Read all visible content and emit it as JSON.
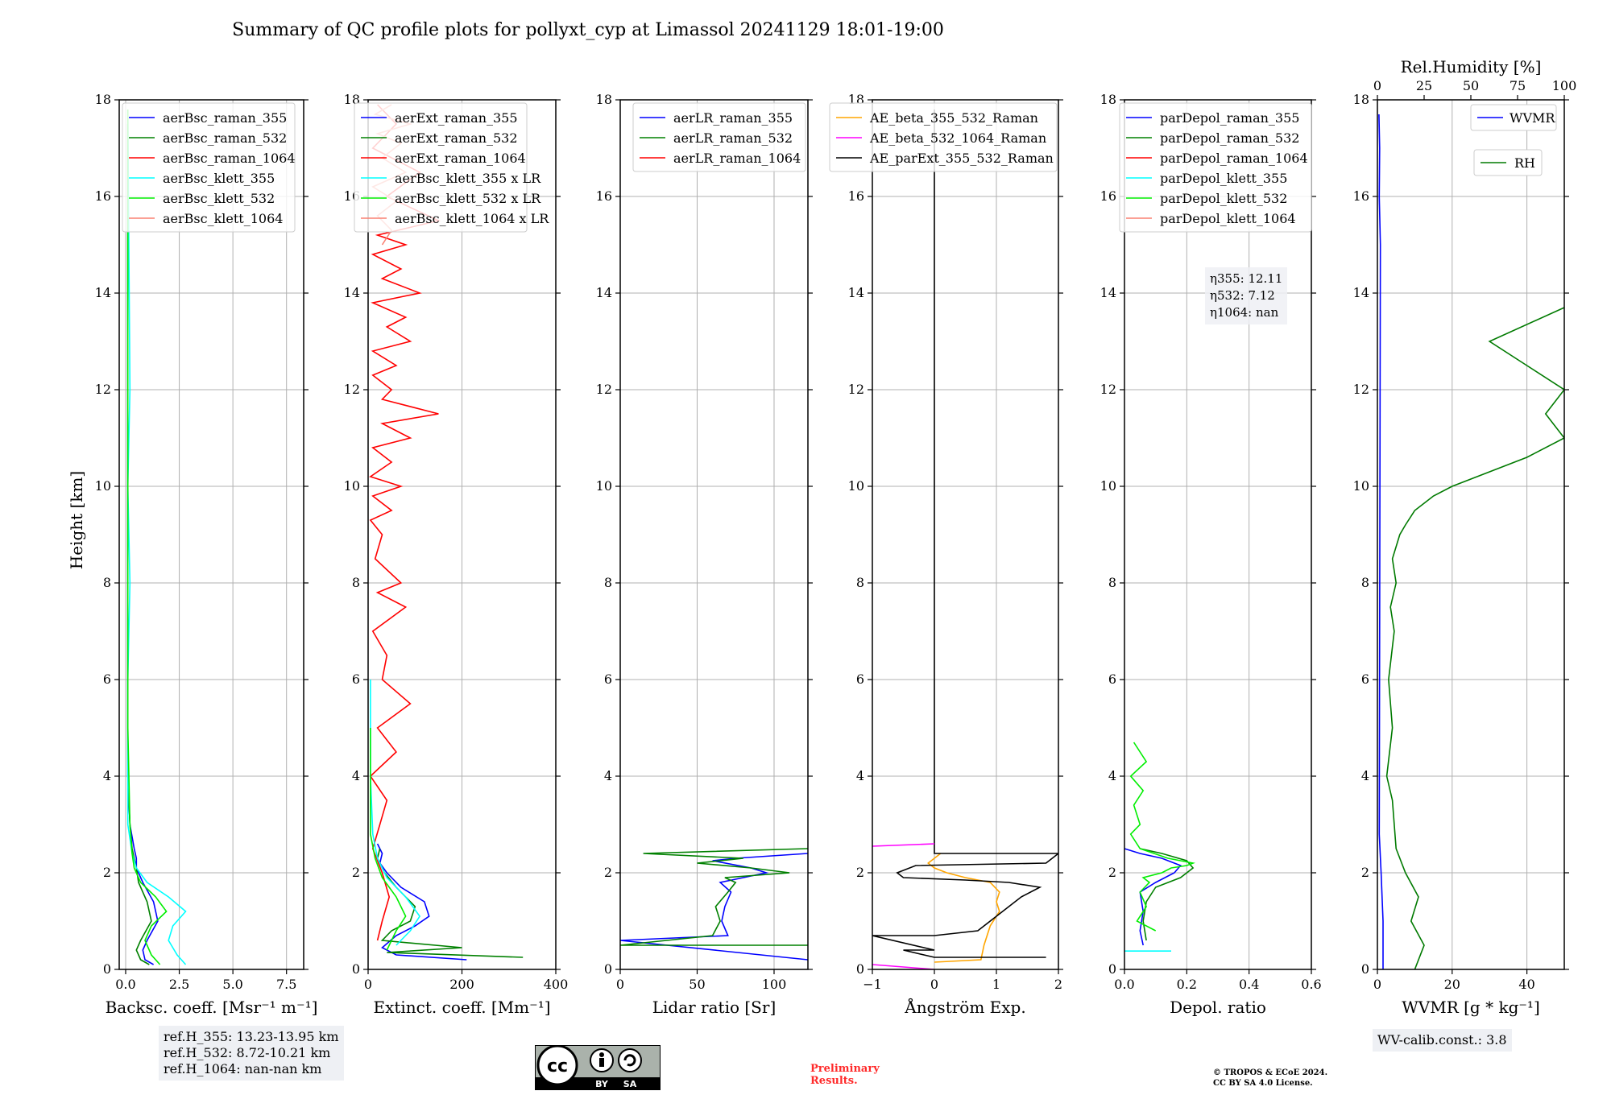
{
  "figure": {
    "title": "Summary of QC profile plots for pollyxt_cyp at Limassol 20241129 18:01-19:00",
    "ylabel": "Height [km]"
  },
  "colors": {
    "blue": "#0000ff",
    "green": "#008000",
    "red": "#ff0000",
    "cyan": "#00ffff",
    "lime": "#00ee00",
    "salmon": "#fa8072",
    "orange": "#ffa500",
    "magenta": "#ff00ff",
    "black": "#000000",
    "darkgreen": "#007a00"
  },
  "chart_data": [
    {
      "type": "line",
      "id": "backscatter",
      "xlabel": "Backsc. coeff. [Msr⁻¹ m⁻¹]",
      "xlim": [
        -0.3,
        8.3
      ],
      "ylim": [
        0,
        18
      ],
      "xticks": [
        "0.0",
        "2.5",
        "5.0",
        "7.5"
      ],
      "xtick_values": [
        0,
        2.5,
        5,
        7.5
      ],
      "yticks": [
        "0",
        "2",
        "4",
        "6",
        "8",
        "10",
        "12",
        "14",
        "16",
        "18"
      ],
      "legend": "top-right",
      "series": [
        {
          "name": "aerBsc_raman_355",
          "color": "blue",
          "x": [
            1.3,
            0.9,
            0.8,
            1.0,
            1.5,
            1.3,
            0.8,
            0.5,
            0.5,
            0.4,
            0.2,
            0.1,
            0.1,
            0.1
          ],
          "y": [
            0.1,
            0.2,
            0.4,
            0.6,
            1.0,
            1.4,
            1.8,
            2.1,
            2.3,
            2.5,
            3.0,
            4.0,
            10.0,
            17.5
          ]
        },
        {
          "name": "aerBsc_raman_532",
          "color": "green",
          "x": [
            1.1,
            0.7,
            0.5,
            0.7,
            1.2,
            1.0,
            0.6,
            0.5,
            0.4,
            0.3,
            0.2,
            0.1,
            0.1,
            0.1
          ],
          "y": [
            0.1,
            0.2,
            0.4,
            0.6,
            1.0,
            1.4,
            1.8,
            2.1,
            2.3,
            2.5,
            3.0,
            4.0,
            10.0,
            17.5
          ]
        },
        {
          "name": "aerBsc_raman_1064",
          "color": "red",
          "x": [],
          "y": []
        },
        {
          "name": "aerBsc_klett_355",
          "color": "cyan",
          "x": [
            2.8,
            2.4,
            2.0,
            2.2,
            2.8,
            2.0,
            1.0,
            0.5,
            0.3,
            0.1,
            0.1,
            0.2,
            0.1,
            0.2,
            0.1
          ],
          "y": [
            0.1,
            0.3,
            0.6,
            0.9,
            1.2,
            1.5,
            1.8,
            2.1,
            2.4,
            3.0,
            6.0,
            8.0,
            10.0,
            12.0,
            17.8
          ]
        },
        {
          "name": "aerBsc_klett_532",
          "color": "lime",
          "x": [
            1.6,
            1.2,
            0.9,
            1.2,
            1.9,
            1.4,
            0.7,
            0.4,
            0.3,
            0.2,
            0.1,
            0.1
          ],
          "y": [
            0.1,
            0.3,
            0.6,
            0.9,
            1.2,
            1.5,
            1.8,
            2.1,
            2.4,
            3.0,
            5.0,
            17.8
          ]
        },
        {
          "name": "aerBsc_klett_1064",
          "color": "salmon",
          "x": [],
          "y": []
        }
      ],
      "annotation": [
        "ref.H_355: 13.23-13.95 km",
        "ref.H_532: 8.72-10.21 km",
        "ref.H_1064: nan-nan km"
      ]
    },
    {
      "type": "line",
      "id": "extinction",
      "xlabel": "Extinct. coeff. [Mm⁻¹]",
      "xlim": [
        0,
        400
      ],
      "ylim": [
        0,
        18
      ],
      "xticks": [
        "0",
        "200",
        "400"
      ],
      "xtick_values": [
        0,
        200,
        400
      ],
      "yticks": [
        "0",
        "2",
        "4",
        "6",
        "8",
        "10",
        "12",
        "14",
        "16",
        "18"
      ],
      "legend": "top-right",
      "series": [
        {
          "name": "aerExt_raman_355",
          "color": "blue",
          "x": [
            210,
            60,
            30,
            60,
            100,
            130,
            120,
            70,
            40,
            25,
            30,
            20
          ],
          "y": [
            0.2,
            0.3,
            0.45,
            0.7,
            0.9,
            1.1,
            1.4,
            1.7,
            2.0,
            2.2,
            2.4,
            2.6
          ]
        },
        {
          "name": "aerExt_raman_532",
          "color": "green",
          "x": [
            330,
            40,
            200,
            30,
            50,
            90,
            100,
            60,
            35,
            20,
            25
          ],
          "y": [
            0.25,
            0.35,
            0.45,
            0.6,
            0.8,
            1.0,
            1.3,
            1.7,
            2.0,
            2.3,
            2.5
          ]
        },
        {
          "name": "aerExt_raman_1064",
          "color": "red",
          "x": [
            20,
            30,
            45,
            30,
            10,
            25,
            40,
            5,
            60,
            20,
            90,
            30,
            40,
            10,
            80,
            20,
            70,
            15,
            30,
            5,
            50,
            10,
            70,
            5,
            50,
            10,
            90,
            30,
            150,
            30,
            50,
            10,
            60,
            10,
            90,
            40,
            80,
            10,
            110,
            30,
            70,
            10,
            80,
            20,
            150,
            40,
            110,
            10,
            60,
            20
          ],
          "y": [
            0.6,
            1.0,
            1.5,
            2.0,
            2.5,
            3.0,
            3.5,
            4.0,
            4.5,
            5.0,
            5.5,
            6.0,
            6.5,
            7.0,
            7.5,
            7.8,
            8.0,
            8.5,
            9.0,
            9.3,
            9.5,
            9.8,
            10.0,
            10.2,
            10.5,
            10.8,
            11.0,
            11.3,
            11.5,
            11.8,
            12.0,
            12.3,
            12.5,
            12.8,
            13.0,
            13.3,
            13.5,
            13.8,
            14.0,
            14.3,
            14.5,
            14.8,
            15.0,
            15.2,
            15.5,
            16.0,
            16.5,
            17.0,
            17.5,
            17.9
          ]
        },
        {
          "name": "aerBsc_klett_355 x LR",
          "color": "cyan",
          "x": [
            60,
            90,
            110,
            80,
            40,
            20,
            10,
            5,
            5
          ],
          "y": [
            0.5,
            0.8,
            1.1,
            1.5,
            1.9,
            2.3,
            2.8,
            4.0,
            6.0
          ]
        },
        {
          "name": "aerBsc_klett_532 x LR",
          "color": "lime",
          "x": [
            40,
            60,
            80,
            60,
            30,
            15,
            5,
            5
          ],
          "y": [
            0.4,
            0.8,
            1.1,
            1.5,
            1.9,
            2.3,
            2.8,
            5.0
          ]
        },
        {
          "name": "aerBsc_klett_1064 x LR",
          "color": "salmon",
          "x": [
            30,
            50,
            20,
            60,
            10,
            80,
            30,
            70,
            20,
            90,
            15,
            50
          ],
          "y": [
            15.0,
            15.3,
            15.6,
            15.9,
            16.2,
            16.5,
            16.8,
            17.1,
            17.3,
            17.5,
            17.7,
            17.9
          ]
        }
      ]
    },
    {
      "type": "line",
      "id": "lidar_ratio",
      "xlabel": "Lidar ratio [Sr]",
      "xlim": [
        0,
        122
      ],
      "ylim": [
        0,
        18
      ],
      "xticks": [
        "0",
        "50",
        "100"
      ],
      "xtick_values": [
        0,
        50,
        100
      ],
      "yticks": [
        "0",
        "2",
        "4",
        "6",
        "8",
        "10",
        "12",
        "14",
        "16",
        "18"
      ],
      "legend": "top-right",
      "series": [
        {
          "name": "aerLR_raman_355",
          "color": "blue",
          "x": [
            122,
            0,
            70,
            66,
            68,
            72,
            65,
            80,
            95,
            85,
            60,
            75,
            122
          ],
          "y": [
            0.2,
            0.6,
            0.7,
            1.0,
            1.3,
            1.6,
            1.8,
            1.9,
            2.0,
            2.1,
            2.25,
            2.3,
            2.4
          ]
        },
        {
          "name": "aerLR_raman_532",
          "color": "green",
          "x": [
            122,
            0,
            60,
            65,
            62,
            70,
            75,
            68,
            110,
            85,
            50,
            80,
            15,
            122
          ],
          "y": [
            0.5,
            0.5,
            0.7,
            1.0,
            1.3,
            1.6,
            1.8,
            1.9,
            2.0,
            2.1,
            2.2,
            2.3,
            2.4,
            2.5
          ]
        },
        {
          "name": "aerLR_raman_1064",
          "color": "red",
          "x": [],
          "y": []
        }
      ]
    },
    {
      "type": "line",
      "id": "angstrom",
      "xlabel": "Ångström Exp.",
      "xlim": [
        -1,
        2
      ],
      "ylim": [
        0,
        18
      ],
      "xticks": [
        "−1",
        "0",
        "1",
        "2"
      ],
      "xtick_values": [
        -1,
        0,
        1,
        2
      ],
      "yticks": [
        "0",
        "2",
        "4",
        "6",
        "8",
        "10",
        "12",
        "14",
        "16",
        "18"
      ],
      "legend": "top-right",
      "series": [
        {
          "name": "AE_beta_355_532_Raman",
          "color": "orange",
          "x": [
            0.0,
            0.75,
            0.8,
            0.9,
            1.05,
            1.0,
            1.05,
            0.9,
            0.5,
            0.2,
            0.0,
            -0.1,
            0.0,
            0.1
          ],
          "y": [
            0.15,
            0.2,
            0.5,
            0.9,
            1.2,
            1.4,
            1.6,
            1.8,
            1.9,
            2.0,
            2.1,
            2.2,
            2.3,
            2.4
          ]
        },
        {
          "name": "AE_beta_532_1064_Raman",
          "color": "magenta",
          "x": [
            -1.0,
            0.0
          ],
          "y": [
            0.1,
            0.0
          ]
        },
        {
          "name": "AE_parExt_355_532_Raman",
          "color": "black",
          "x": [
            1.8,
            0.0,
            -0.5,
            0.0,
            -1.0,
            0.0,
            0.7,
            1.0,
            1.4,
            1.7,
            1.2,
            0.5,
            -0.5,
            -0.6,
            -0.3,
            1.8,
            2.0,
            0.0,
            0.0
          ],
          "y": [
            0.25,
            0.25,
            0.4,
            0.4,
            0.7,
            0.7,
            0.8,
            1.1,
            1.5,
            1.7,
            1.8,
            1.85,
            1.9,
            2.0,
            2.15,
            2.2,
            2.4,
            2.4,
            17.8
          ]
        },
        {
          "name": "AE_beta_532_1064_Raman_upper",
          "color": "magenta",
          "x": [
            -1.0,
            0.0
          ],
          "y": [
            2.55,
            2.6
          ]
        }
      ]
    },
    {
      "type": "line",
      "id": "depol",
      "xlabel": "Depol. ratio",
      "xlim": [
        0,
        0.6
      ],
      "ylim": [
        0,
        18
      ],
      "xticks": [
        "0.0",
        "0.2",
        "0.4",
        "0.6"
      ],
      "xtick_values": [
        0,
        0.2,
        0.4,
        0.6
      ],
      "yticks": [
        "0",
        "2",
        "4",
        "6",
        "8",
        "10",
        "12",
        "14",
        "16",
        "18"
      ],
      "legend": "top-right",
      "series": [
        {
          "name": "parDepol_raman_355",
          "color": "blue",
          "x": [
            0.06,
            0.05,
            0.06,
            0.05,
            0.1,
            0.16,
            0.18,
            0.12,
            0.05,
            0.0
          ],
          "y": [
            0.5,
            0.8,
            1.2,
            1.6,
            1.8,
            2.0,
            2.15,
            2.3,
            2.4,
            2.5
          ]
        },
        {
          "name": "parDepol_raman_532",
          "color": "green",
          "x": [
            0.07,
            0.06,
            0.07,
            0.1,
            0.18,
            0.22,
            0.2,
            0.12,
            0.05
          ],
          "y": [
            0.6,
            1.0,
            1.4,
            1.7,
            1.9,
            2.1,
            2.25,
            2.4,
            2.5
          ]
        },
        {
          "name": "parDepol_raman_1064",
          "color": "red",
          "x": [],
          "y": []
        },
        {
          "name": "parDepol_klett_355",
          "color": "cyan",
          "x": [
            0.15,
            0.0
          ],
          "y": [
            0.38,
            0.38
          ]
        },
        {
          "name": "parDepol_klett_532",
          "color": "lime",
          "x": [
            0.1,
            0.04,
            0.07,
            0.05,
            0.08,
            0.06,
            0.12,
            0.15,
            0.2,
            0.22,
            0.14,
            0.05,
            0.02,
            0.05,
            0.03,
            0.06,
            0.02,
            0.07,
            0.03
          ],
          "y": [
            0.8,
            1.0,
            1.3,
            1.6,
            1.8,
            1.9,
            2.0,
            2.1,
            2.15,
            2.2,
            2.3,
            2.5,
            2.8,
            3.0,
            3.4,
            3.7,
            4.0,
            4.3,
            4.7
          ]
        },
        {
          "name": "parDepol_klett_1064",
          "color": "salmon",
          "x": [],
          "y": []
        }
      ],
      "annotation": [
        "η355: 12.11",
        "η532: 7.12",
        "η1064: nan"
      ]
    },
    {
      "type": "line",
      "id": "wvmr",
      "xlabel": "WVMR [g * kg⁻¹]",
      "x2label": "Rel.Humidity [%]",
      "xlim": [
        0,
        50
      ],
      "x2lim": [
        0,
        100
      ],
      "ylim": [
        0,
        18
      ],
      "xticks": [
        "0",
        "20",
        "40"
      ],
      "xtick_values": [
        0,
        20,
        40
      ],
      "x2ticks": [
        "0",
        "25",
        "50",
        "75",
        "100"
      ],
      "x2tick_values": [
        0,
        25,
        50,
        75,
        100
      ],
      "yticks": [
        "0",
        "2",
        "4",
        "6",
        "8",
        "10",
        "12",
        "14",
        "16",
        "18"
      ],
      "series": [
        {
          "name": "WVMR",
          "color": "blue",
          "x": [
            1.5,
            1.5,
            1.0,
            0.5,
            0.8,
            0.5,
            0.6,
            0.4
          ],
          "y": [
            0.0,
            1.0,
            2.0,
            2.8,
            15.0,
            16.0,
            17.0,
            17.7
          ]
        },
        {
          "name": "RH",
          "color": "darkgreen",
          "axis": "x2",
          "x": [
            20,
            25,
            18,
            22,
            15,
            10,
            8,
            5,
            8,
            6,
            9,
            7,
            10,
            8,
            12,
            15,
            20,
            30,
            40,
            60,
            80,
            100,
            90,
            100,
            80,
            60,
            100
          ],
          "y": [
            0.0,
            0.5,
            1.0,
            1.5,
            2.0,
            2.5,
            3.5,
            4.0,
            5.0,
            6.0,
            7.0,
            7.5,
            8.0,
            8.5,
            9.0,
            9.2,
            9.5,
            9.8,
            10.0,
            10.3,
            10.6,
            11.0,
            11.5,
            12.0,
            12.5,
            13.0,
            13.7
          ]
        }
      ],
      "annotation": [
        "WV-calib.const.: 3.8"
      ]
    }
  ],
  "footer": {
    "cc_badge": {
      "cc": "cc",
      "by": "BY",
      "sa": "SA"
    },
    "preliminary": [
      "Preliminary",
      "Results."
    ],
    "copyright": [
      "© TROPOS & ECoE 2024.",
      "CC BY SA 4.0 License."
    ]
  }
}
